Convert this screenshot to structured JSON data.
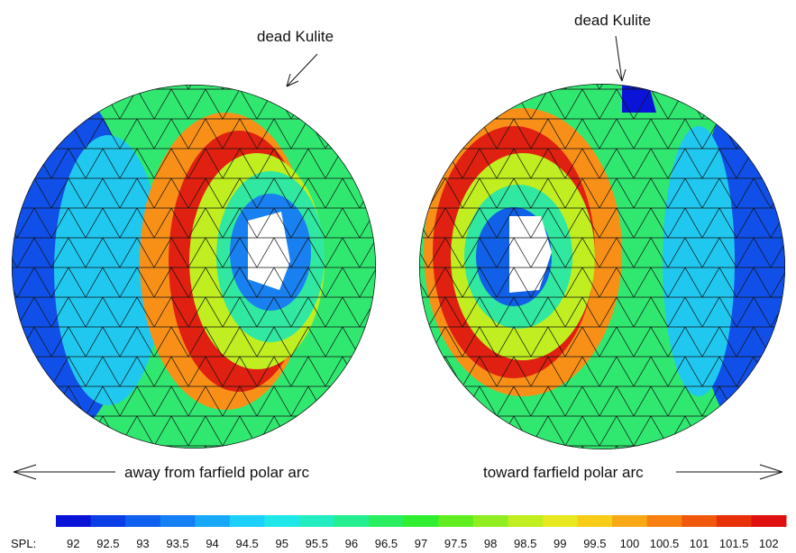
{
  "annotations": {
    "dead_left": "dead Kulite",
    "dead_right": "dead Kulite",
    "away": "away from farfield polar arc",
    "toward": "toward farfield polar arc"
  },
  "colorbar": {
    "label": "SPL:",
    "ticks": [
      92,
      92.5,
      93,
      93.5,
      94,
      94.5,
      95,
      95.5,
      96,
      96.5,
      97,
      97.5,
      98,
      98.5,
      99,
      99.5,
      100,
      100.5,
      101,
      101.5,
      102
    ],
    "colors": [
      "#0a14d8",
      "#0c3ee6",
      "#1060f0",
      "#1480f4",
      "#18a8f8",
      "#1cd0fa",
      "#20e8e8",
      "#22ecc0",
      "#24ee90",
      "#28ee60",
      "#30ee30",
      "#60ee20",
      "#90ee20",
      "#c0ee20",
      "#e8e820",
      "#f8cc18",
      "#f8a814",
      "#f88010",
      "#f0580c",
      "#e83008",
      "#e01010"
    ]
  }
}
